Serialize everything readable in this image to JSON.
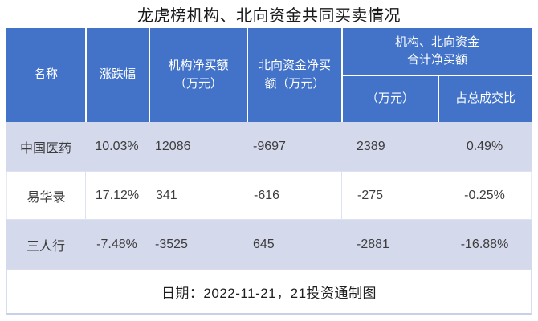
{
  "chart_data": {
    "type": "table",
    "title": "龙虎榜机构、北向资金共同买卖情况",
    "columns": [
      "名称",
      "涨跌幅",
      "机构净买额（万元）",
      "北向资金净买额（万元）",
      "机构、北向资金合计净买额（万元）",
      "机构、北向资金合计净买额占总成交比"
    ],
    "rows": [
      [
        "中国医药",
        "10.03%",
        "12086",
        "-9697",
        "2389",
        "0.49%"
      ],
      [
        "易华录",
        "17.12%",
        "341",
        "-616",
        "-275",
        "-0.25%"
      ],
      [
        "三人行",
        "-7.48%",
        "-3525",
        "645",
        "-2881",
        "-16.88%"
      ]
    ]
  },
  "header": {
    "name": "名称",
    "change": "涨跌幅",
    "inst_net_buy": "机构净买额\n（万元）",
    "north_net_buy": "北向资金净买\n额（万元）",
    "combined_group": "机构、北向资金\n合计净买额",
    "combined_amount": "（万元）",
    "combined_ratio": "占总成交比"
  },
  "footer": {
    "note": "日期：2022-11-21，21投资通制图"
  },
  "colors": {
    "header_bg": "#4273c8",
    "band_row_bg": "#d4d9ec",
    "white_row_bg": "#ffffff",
    "grid_line": "#dde1f2",
    "header_text": "#ffffff",
    "data_text": "#3d3d3d",
    "title_text": "#1a1a1a"
  }
}
